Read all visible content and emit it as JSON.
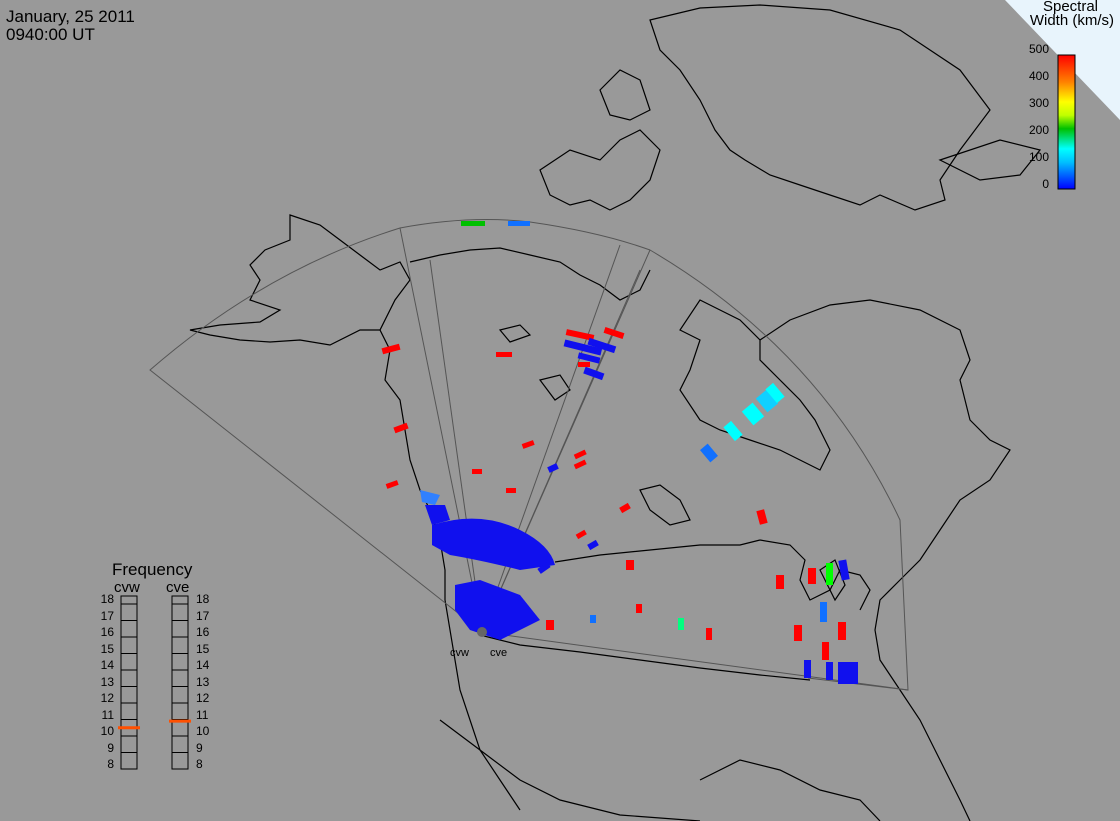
{
  "header": {
    "date": "January, 25 2011",
    "time": "0940:00 UT"
  },
  "colorbar": {
    "title_line1": "Spectral",
    "title_line2": "Width (km/s)",
    "ticks": [
      "500",
      "400",
      "300",
      "200",
      "100",
      "0"
    ],
    "colors": [
      "#0000ff",
      "#0080ff",
      "#00ffff",
      "#00ff80",
      "#00c000",
      "#c0ff00",
      "#ffff00",
      "#ffc000",
      "#ff8000",
      "#ff0000"
    ]
  },
  "frequency_panel": {
    "title": "Frequency",
    "radars": [
      {
        "name": "cvw",
        "selected_mhz": 10.5
      },
      {
        "name": "cve",
        "selected_mhz": 10.9
      }
    ],
    "scale_min": 8,
    "scale_max": 18,
    "labels": [
      "18",
      "17",
      "16",
      "15",
      "14",
      "13",
      "12",
      "11",
      "10",
      "9",
      "8"
    ]
  },
  "sites": [
    {
      "name": "cvw"
    },
    {
      "name": "cve"
    }
  ],
  "colors": {
    "background": "#999999",
    "coast": "#000000",
    "fov": "#555555",
    "indicator": "#ff5000"
  }
}
